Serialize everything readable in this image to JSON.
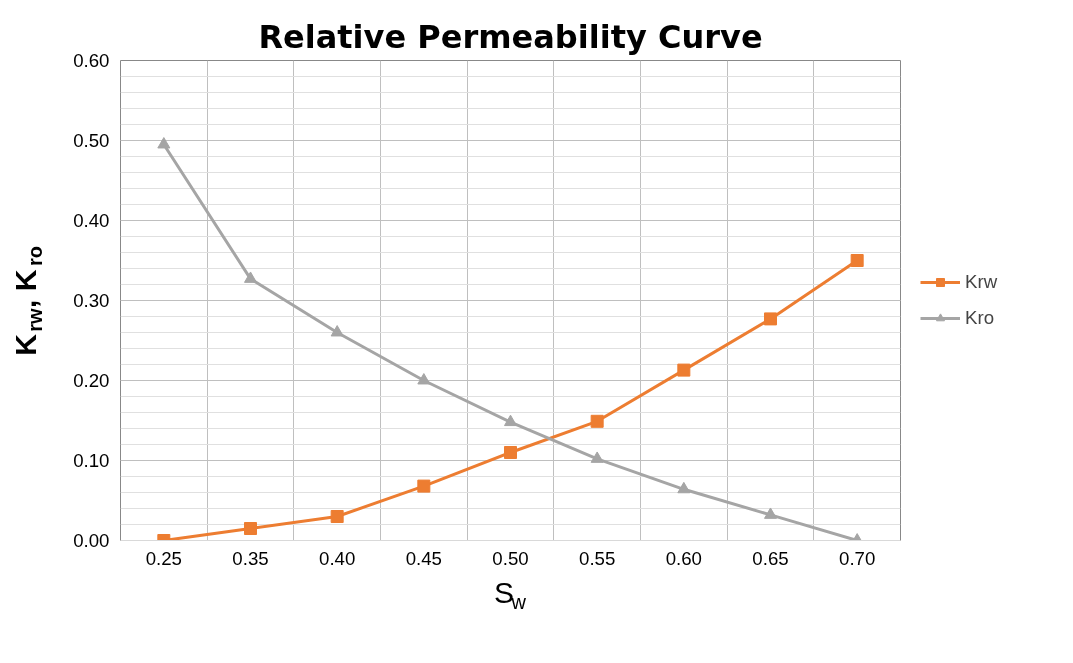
{
  "chart_data": {
    "type": "line",
    "title": "Relative Permeability Curve",
    "xlabel": "S$_{w}$",
    "ylabel": "K$_{rw}$, K$_{ro}$",
    "categories": [
      "0.25",
      "0.35",
      "0.40",
      "0.45",
      "0.50",
      "0.55",
      "0.60",
      "0.65",
      "0.70"
    ],
    "series": [
      {
        "name": "Krw",
        "color": "#ed7d31",
        "marker": "square",
        "values": [
          0,
          0.015,
          0.03,
          0.068,
          0.11,
          0.149,
          0.213,
          0.277,
          0.35
        ]
      },
      {
        "name": "Kro",
        "color": "#a5a5a5",
        "marker": "triangle",
        "values": [
          0.495,
          0.327,
          0.26,
          0.2,
          0.148,
          0.102,
          0.064,
          0.032,
          0.0
        ]
      }
    ],
    "ylim": [
      0,
      0.6
    ],
    "yticks": [
      {
        "value": 0,
        "label": "0.00"
      },
      {
        "value": 0.1,
        "label": "0.10"
      },
      {
        "value": 0.2,
        "label": "0.20"
      },
      {
        "value": 0.3,
        "label": "0.30"
      },
      {
        "value": 0.4,
        "label": "0.40"
      },
      {
        "value": 0.5,
        "label": "0.50"
      },
      {
        "value": 0.6,
        "label": "0.60"
      }
    ],
    "grid": true,
    "legend": "right"
  }
}
